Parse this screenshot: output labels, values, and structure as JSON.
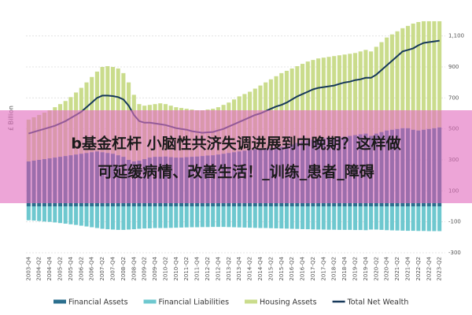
{
  "chart_data": {
    "type": "bar",
    "stacked": true,
    "y_label": "£ Billion",
    "categories": [
      "2003-Q4",
      null,
      "2004-Q2",
      null,
      "2004-Q4",
      null,
      "2005-Q2",
      null,
      "2005-Q4",
      null,
      "2006-Q2",
      null,
      "2006-Q4",
      null,
      "2007-Q2",
      null,
      "2007-Q4",
      null,
      "2008-Q2",
      null,
      "2008-Q4",
      null,
      "2009-Q2",
      null,
      "2009-Q4",
      null,
      "2010-Q2",
      null,
      "2010-Q4",
      null,
      "2011-Q2",
      null,
      "2011-Q4",
      null,
      "2012-Q2",
      null,
      "2012-Q4",
      null,
      "2013-Q2",
      null,
      "2013-Q4",
      null,
      "2014-Q2",
      null,
      "2014-Q4",
      null,
      "2015-Q2",
      null,
      "2015-Q4",
      null,
      "2016-Q2",
      null,
      "2016-Q4",
      null,
      "2017-Q2",
      null,
      "2017-Q4",
      null,
      "2018-Q2",
      null,
      "2018-Q4",
      null,
      "2019-Q2",
      null,
      "2019-Q4",
      null,
      "2020-Q2",
      null,
      "2020-Q4",
      null,
      "2021-Q2",
      null,
      "2021-Q4",
      null,
      "2022-Q2",
      null,
      "2022-Q4",
      null,
      "2023-Q2"
    ],
    "series": [
      {
        "name": "Financial Assets",
        "type": "bar",
        "color": "#2b6f8e",
        "values": [
          290,
          295,
          300,
          305,
          310,
          315,
          320,
          325,
          330,
          335,
          340,
          345,
          350,
          355,
          350,
          345,
          340,
          330,
          320,
          300,
          290,
          295,
          305,
          315,
          320,
          320,
          322,
          318,
          315,
          315,
          318,
          320,
          322,
          325,
          328,
          330,
          335,
          340,
          345,
          350,
          355,
          360,
          365,
          370,
          375,
          375,
          378,
          380,
          385,
          390,
          400,
          410,
          420,
          425,
          430,
          435,
          440,
          445,
          440,
          445,
          450,
          455,
          460,
          465,
          470,
          455,
          470,
          480,
          490,
          495,
          500,
          505,
          505,
          495,
          490,
          495,
          500,
          505,
          510
        ]
      },
      {
        "name": "Financial Liabilities",
        "type": "bar",
        "color": "#6ec8cf",
        "values": [
          -90,
          -92,
          -95,
          -98,
          -100,
          -104,
          -108,
          -112,
          -116,
          -120,
          -125,
          -130,
          -135,
          -140,
          -145,
          -148,
          -150,
          -152,
          -152,
          -150,
          -148,
          -145,
          -143,
          -142,
          -140,
          -140,
          -140,
          -139,
          -138,
          -137,
          -136,
          -135,
          -135,
          -134,
          -134,
          -133,
          -133,
          -133,
          -134,
          -135,
          -136,
          -137,
          -138,
          -139,
          -140,
          -140,
          -141,
          -142,
          -143,
          -144,
          -145,
          -146,
          -147,
          -148,
          -149,
          -150,
          -150,
          -151,
          -151,
          -152,
          -152,
          -152,
          -153,
          -153,
          -154,
          -150,
          -150,
          -152,
          -154,
          -155,
          -156,
          -157,
          -158,
          -158,
          -159,
          -159,
          -160,
          -160,
          -160
        ]
      },
      {
        "name": "Housing Assets",
        "type": "bar",
        "color": "#cadc8c",
        "values": [
          270,
          280,
          290,
          300,
          310,
          325,
          340,
          355,
          375,
          400,
          425,
          455,
          485,
          515,
          550,
          560,
          560,
          560,
          540,
          500,
          430,
          365,
          345,
          340,
          340,
          345,
          338,
          332,
          325,
          320,
          312,
          305,
          298,
          295,
          297,
          300,
          305,
          315,
          325,
          340,
          355,
          365,
          375,
          390,
          405,
          425,
          442,
          460,
          475,
          485,
          490,
          495,
          500,
          510,
          515,
          520,
          520,
          520,
          530,
          530,
          530,
          530,
          530,
          535,
          540,
          545,
          560,
          580,
          600,
          615,
          630,
          645,
          660,
          685,
          700,
          700,
          695,
          690,
          685
        ]
      },
      {
        "name": "Total Net Wealth",
        "type": "line",
        "color": "#17395a",
        "values": [
          470,
          480,
          490,
          500,
          510,
          520,
          535,
          550,
          570,
          590,
          610,
          640,
          670,
          700,
          715,
          715,
          712,
          705,
          690,
          650,
          590,
          550,
          540,
          540,
          535,
          530,
          525,
          515,
          505,
          500,
          495,
          485,
          480,
          475,
          478,
          480,
          490,
          500,
          515,
          530,
          545,
          560,
          575,
          590,
          600,
          615,
          630,
          645,
          655,
          670,
          690,
          710,
          725,
          740,
          755,
          765,
          770,
          775,
          780,
          790,
          800,
          805,
          815,
          820,
          830,
          830,
          850,
          880,
          910,
          940,
          970,
          1000,
          1010,
          1020,
          1040,
          1055,
          1060,
          1065,
          1070
        ]
      }
    ],
    "ylim": [
      -300,
      1200
    ],
    "yticks": [
      {
        "value": 1100,
        "label": "1,100"
      },
      900,
      700,
      500,
      300,
      100,
      -100,
      -300
    ],
    "grid": true,
    "legend": "bottom"
  },
  "overlay": {
    "lines": [
      "b基金杠杆 小脑性共济失调进展到中晚期？这样做",
      "可延缓病情、改善生活！_训练_患者_障碍"
    ]
  }
}
